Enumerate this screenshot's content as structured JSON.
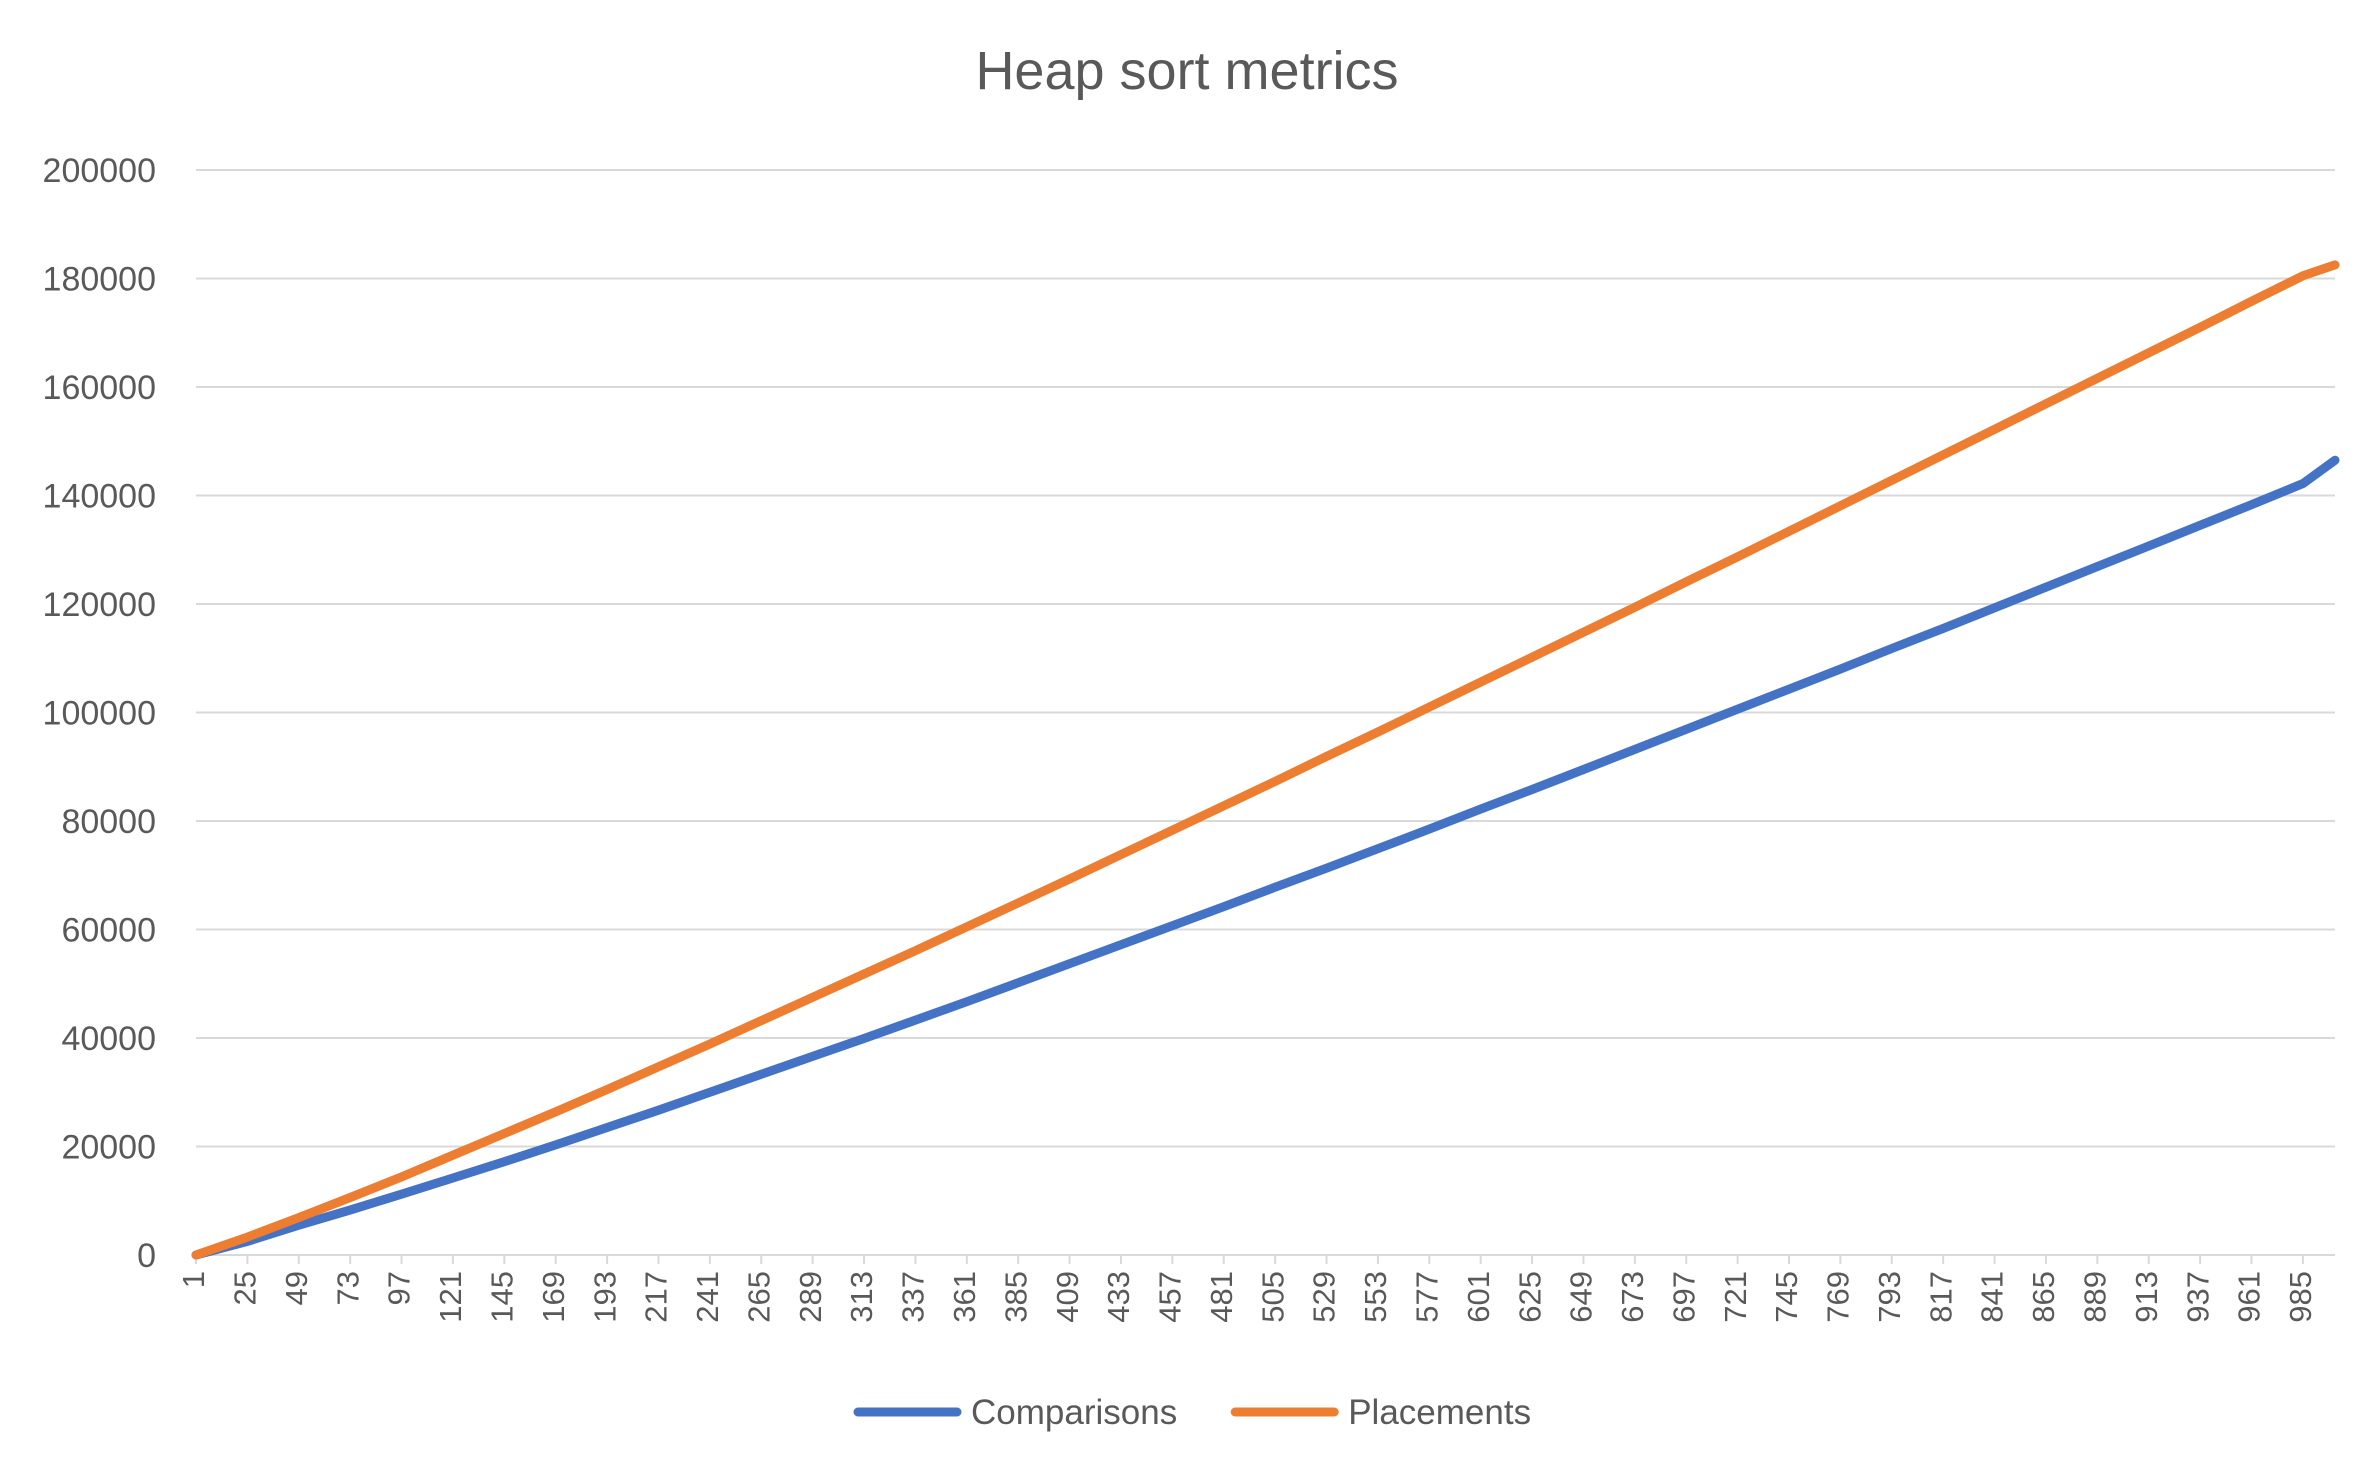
{
  "chart_data": {
    "type": "line",
    "title": "Heap sort metrics",
    "xlabel": "",
    "ylabel": "",
    "x_range": [
      1,
      1000
    ],
    "x_tick_labels": [
      "1",
      "25",
      "49",
      "73",
      "97",
      "121",
      "145",
      "169",
      "193",
      "217",
      "241",
      "265",
      "289",
      "313",
      "337",
      "361",
      "385",
      "409",
      "433",
      "457",
      "481",
      "505",
      "529",
      "553",
      "577",
      "601",
      "625",
      "649",
      "673",
      "697",
      "721",
      "745",
      "769",
      "793",
      "817",
      "841",
      "865",
      "889",
      "913",
      "937",
      "961",
      "985"
    ],
    "ylim": [
      0,
      200000
    ],
    "y_ticks": [
      0,
      20000,
      40000,
      60000,
      80000,
      100000,
      120000,
      140000,
      160000,
      180000,
      200000
    ],
    "grid": "horizontal",
    "legend": "bottom",
    "series": [
      {
        "name": "Comparisons",
        "color": "#4472c4",
        "x": [
          1,
          25,
          49,
          73,
          97,
          121,
          145,
          169,
          193,
          217,
          241,
          265,
          289,
          313,
          337,
          361,
          385,
          409,
          433,
          457,
          481,
          505,
          529,
          553,
          577,
          601,
          625,
          649,
          673,
          697,
          721,
          745,
          769,
          793,
          817,
          841,
          865,
          889,
          913,
          937,
          961,
          985,
          1000
        ],
        "values": [
          0,
          2500,
          5500,
          8300,
          11200,
          14200,
          17200,
          20300,
          23500,
          26700,
          30000,
          33300,
          36600,
          39900,
          43300,
          46700,
          50200,
          53700,
          57200,
          60700,
          64200,
          67800,
          71300,
          74900,
          78500,
          82200,
          85800,
          89500,
          93200,
          96900,
          100600,
          104300,
          108000,
          111800,
          115500,
          119300,
          123100,
          126900,
          130700,
          134500,
          138300,
          142200,
          146500
        ]
      },
      {
        "name": "Placements",
        "color": "#ed7d31",
        "x": [
          1,
          25,
          49,
          73,
          97,
          121,
          145,
          169,
          193,
          217,
          241,
          265,
          289,
          313,
          337,
          361,
          385,
          409,
          433,
          457,
          481,
          505,
          529,
          553,
          577,
          601,
          625,
          649,
          673,
          697,
          721,
          745,
          769,
          793,
          817,
          841,
          865,
          889,
          913,
          937,
          961,
          985,
          1000
        ],
        "values": [
          0,
          3300,
          6900,
          10600,
          14400,
          18400,
          22400,
          26400,
          30500,
          34700,
          38900,
          43200,
          47500,
          51800,
          56100,
          60500,
          64900,
          69300,
          73800,
          78300,
          82800,
          87300,
          91900,
          96400,
          101000,
          105600,
          110200,
          114800,
          119400,
          124100,
          128700,
          133400,
          138100,
          142800,
          147500,
          152200,
          156900,
          161600,
          166300,
          171000,
          175800,
          180500,
          182500
        ]
      }
    ]
  }
}
